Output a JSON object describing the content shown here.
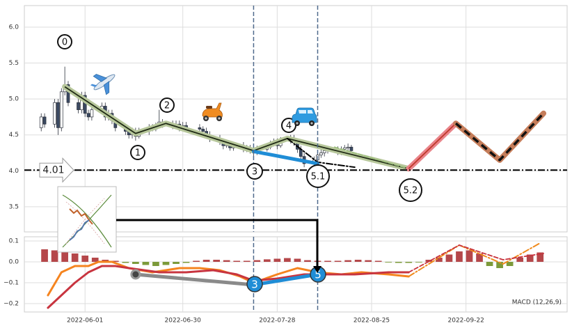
{
  "chart_data": [
    {
      "type": "candlestick",
      "xlim": [
        "2022-05-14",
        "2022-10-22"
      ],
      "ylim": [
        3.15,
        6.3
      ],
      "yticks": [
        3.5,
        {
          "value": 4,
          "label": "4.0"
        },
        4.5,
        {
          "value": 5,
          "label": "5.0"
        },
        5.5,
        {
          "value": 6,
          "label": "6.0"
        }
      ],
      "xticks": [
        "2022-06-01",
        "2022-06-30",
        "2022-07-28",
        "2022-08-25",
        "2022-09-22"
      ],
      "xticklabels": false,
      "grid": true,
      "up_color": "#ffffff",
      "down_color": "#3b4a63",
      "edge_color": "#2a2f3a",
      "x": [
        "2022-05-19",
        "2022-05-20",
        "2022-05-23",
        "2022-05-24",
        "2022-05-25",
        "2022-05-26",
        "2022-05-27",
        "2022-05-30",
        "2022-05-31",
        "2022-06-01",
        "2022-06-02",
        "2022-06-03",
        "2022-06-06",
        "2022-06-07",
        "2022-06-08",
        "2022-06-09",
        "2022-06-10",
        "2022-06-13",
        "2022-06-14",
        "2022-06-15",
        "2022-06-16",
        "2022-06-17",
        "2022-06-20",
        "2022-06-21",
        "2022-06-22",
        "2022-06-23",
        "2022-06-24",
        "2022-06-27",
        "2022-06-28",
        "2022-06-29",
        "2022-06-30",
        "2022-07-01",
        "2022-07-05",
        "2022-07-06",
        "2022-07-07",
        "2022-07-08",
        "2022-07-11",
        "2022-07-12",
        "2022-07-13",
        "2022-07-14",
        "2022-07-15",
        "2022-07-18",
        "2022-07-19",
        "2022-07-20",
        "2022-07-21",
        "2022-07-22",
        "2022-07-25",
        "2022-07-26",
        "2022-07-27",
        "2022-07-28",
        "2022-07-29",
        "2022-08-01",
        "2022-08-02",
        "2022-08-03",
        "2022-08-04",
        "2022-08-05",
        "2022-08-08",
        "2022-08-09",
        "2022-08-10",
        "2022-08-11",
        "2022-08-12",
        "2022-08-15",
        "2022-08-16",
        "2022-08-17",
        "2022-08-18",
        "2022-08-19"
      ],
      "open": [
        4.6,
        4.75,
        4.65,
        4.95,
        4.6,
        5.1,
        5.2,
        4.95,
        4.85,
        5.05,
        4.8,
        4.75,
        4.85,
        4.9,
        4.75,
        4.8,
        4.7,
        4.6,
        4.55,
        4.5,
        4.55,
        4.48,
        4.55,
        4.6,
        4.58,
        4.62,
        4.68,
        4.65,
        4.62,
        4.65,
        4.6,
        4.63,
        4.6,
        4.58,
        4.55,
        4.5,
        4.45,
        4.4,
        4.35,
        4.38,
        4.32,
        4.35,
        4.3,
        4.32,
        4.28,
        4.25,
        4.3,
        4.33,
        4.38,
        4.4,
        4.35,
        4.42,
        4.45,
        4.4,
        4.3,
        4.2,
        4.1,
        4.15,
        4.22,
        4.25,
        4.28,
        4.3,
        4.26,
        4.3,
        4.32,
        4.33
      ],
      "high": [
        4.8,
        4.8,
        5.0,
        5.0,
        5.15,
        5.45,
        5.25,
        5.0,
        5.1,
        5.1,
        4.85,
        4.9,
        4.95,
        4.95,
        4.85,
        4.85,
        4.75,
        4.65,
        4.6,
        4.6,
        4.6,
        4.6,
        4.65,
        4.65,
        4.67,
        4.85,
        4.72,
        4.7,
        4.7,
        4.7,
        4.68,
        4.68,
        4.65,
        4.62,
        4.6,
        4.55,
        4.5,
        4.45,
        4.42,
        4.42,
        4.4,
        4.4,
        4.36,
        4.36,
        4.32,
        4.35,
        4.38,
        4.42,
        4.45,
        4.45,
        4.47,
        4.5,
        4.5,
        4.45,
        4.35,
        4.25,
        4.2,
        4.26,
        4.3,
        4.32,
        4.34,
        4.34,
        4.34,
        4.36,
        4.38,
        4.36
      ],
      "low": [
        4.55,
        4.6,
        4.6,
        4.5,
        4.55,
        5.05,
        4.9,
        4.8,
        4.8,
        4.75,
        4.7,
        4.7,
        4.8,
        4.7,
        4.7,
        4.65,
        4.55,
        4.5,
        4.45,
        4.45,
        4.42,
        4.45,
        4.5,
        4.55,
        4.55,
        4.6,
        4.6,
        4.58,
        4.58,
        4.55,
        4.56,
        4.56,
        4.54,
        4.5,
        4.46,
        4.4,
        4.36,
        4.3,
        4.32,
        4.28,
        4.28,
        4.26,
        4.26,
        4.24,
        4.2,
        4.22,
        4.27,
        4.3,
        4.34,
        4.3,
        4.32,
        4.38,
        4.35,
        4.25,
        4.15,
        4.05,
        4.05,
        4.1,
        4.18,
        4.2,
        4.24,
        4.22,
        4.22,
        4.26,
        4.28,
        4.24
      ],
      "close": [
        4.75,
        4.65,
        4.95,
        4.6,
        5.1,
        5.2,
        4.95,
        4.85,
        5.05,
        4.8,
        4.75,
        4.85,
        4.9,
        4.75,
        4.8,
        4.7,
        4.6,
        4.55,
        4.5,
        4.55,
        4.48,
        4.55,
        4.6,
        4.58,
        4.62,
        4.68,
        4.65,
        4.62,
        4.65,
        4.6,
        4.63,
        4.6,
        4.58,
        4.55,
        4.5,
        4.45,
        4.4,
        4.35,
        4.38,
        4.32,
        4.35,
        4.3,
        4.32,
        4.28,
        4.25,
        4.3,
        4.33,
        4.38,
        4.4,
        4.35,
        4.42,
        4.45,
        4.4,
        4.3,
        4.2,
        4.1,
        4.15,
        4.22,
        4.25,
        4.28,
        4.3,
        4.26,
        4.3,
        4.32,
        4.33,
        4.28
      ],
      "lines": [
        {
          "x": [
            "2022-05-26",
            "2022-06-16",
            "2022-06-25",
            "2022-07-21",
            "2022-07-31",
            "2022-09-05"
          ],
          "values": [
            5.17,
            4.52,
            4.66,
            4.28,
            4.45,
            4.03
          ],
          "color": "#b7c79b",
          "inner": "#1f2a14",
          "style": "halo"
        },
        {
          "x": [
            "2022-08-14",
            "2022-09-05"
          ],
          "values": [
            4.33,
            4.03
          ],
          "color": "#9dbf7e",
          "style": "dashed"
        },
        {
          "x": [
            "2022-07-31",
            "2022-08-09",
            "2022-08-20"
          ],
          "values": [
            4.45,
            4.12,
            4.05
          ],
          "color": "#000000",
          "style": "dashdot"
        },
        {
          "x": [
            "2022-07-21",
            "2022-08-09"
          ],
          "values": [
            4.27,
            4.1
          ],
          "color": "#1f8dd6",
          "style": "heavy"
        },
        {
          "x": [
            "2022-09-05",
            "2022-09-19"
          ],
          "values": [
            4.03,
            4.66
          ],
          "color": "#e9848a",
          "inner": "#c0392b",
          "style": "halo"
        },
        {
          "x": [
            "2022-09-19",
            "2022-10-02",
            "2022-10-15"
          ],
          "values": [
            4.66,
            4.15,
            4.8
          ],
          "color": "#c57d5a",
          "inner": "#111111",
          "style": "halo-dashed"
        }
      ],
      "hline": 4.01,
      "hline_color": "#000000",
      "vlines": [
        "2022-07-21",
        "2022-08-09"
      ],
      "vline_color": "#4f6a8c",
      "annotations": [
        "0",
        "1",
        "2",
        "4",
        "3",
        "5.1",
        "5.2"
      ]
    },
    {
      "type": "bar",
      "xlim": [
        "2022-05-14",
        "2022-10-22"
      ],
      "ylim": [
        -0.24,
        0.12
      ],
      "yticks": [
        {
          "value": -0.2,
          "label": "−0.2"
        },
        {
          "value": -0.1,
          "label": "−0.1"
        },
        {
          "value": 0,
          "label": "0.0"
        },
        0.1
      ],
      "xticks": [
        "2022-06-01",
        "2022-06-30",
        "2022-07-28",
        "2022-08-25",
        "2022-09-22"
      ],
      "xticklabels": true,
      "grid": true,
      "label": "MACD (12,26,9)",
      "positive_color": "#b5474a",
      "negative_color": "#7c9a3a",
      "x": [
        "2022-05-20",
        "2022-05-23",
        "2022-05-26",
        "2022-05-29",
        "2022-06-01",
        "2022-06-04",
        "2022-06-07",
        "2022-06-10",
        "2022-06-13",
        "2022-06-16",
        "2022-06-19",
        "2022-06-22",
        "2022-06-25",
        "2022-06-28",
        "2022-07-01",
        "2022-07-04",
        "2022-07-07",
        "2022-07-10",
        "2022-07-13",
        "2022-07-16",
        "2022-07-19",
        "2022-07-22",
        "2022-07-25",
        "2022-07-28",
        "2022-07-31",
        "2022-08-03",
        "2022-08-06",
        "2022-08-09",
        "2022-08-12",
        "2022-08-15",
        "2022-08-18",
        "2022-08-21",
        "2022-08-24",
        "2022-08-27",
        "2022-08-30",
        "2022-09-02",
        "2022-09-05",
        "2022-09-08",
        "2022-09-11",
        "2022-09-14",
        "2022-09-17",
        "2022-09-20",
        "2022-09-23",
        "2022-09-26",
        "2022-09-29",
        "2022-10-02",
        "2022-10-05",
        "2022-10-08",
        "2022-10-11",
        "2022-10-14"
      ],
      "values": [
        0.06,
        0.055,
        0.05,
        0.04,
        0.03,
        0.02,
        0.01,
        0.005,
        -0.005,
        -0.01,
        -0.015,
        -0.02,
        -0.015,
        -0.01,
        -0.005,
        0.005,
        0.01,
        0.01,
        0.008,
        0.005,
        0.005,
        0.008,
        0.012,
        0.015,
        0.018,
        0.015,
        0.008,
        0.005,
        0.005,
        0.005,
        0.008,
        0.01,
        0.008,
        0.005,
        -0.003,
        -0.005,
        -0.005,
        -0.003,
        0.01,
        0.02,
        0.035,
        0.05,
        0.055,
        0.04,
        -0.02,
        -0.03,
        -0.02,
        0.02,
        0.035,
        0.045
      ],
      "lines": [
        {
          "x": [
            "2022-05-21",
            "2022-05-25",
            "2022-05-29",
            "2022-06-02",
            "2022-06-05",
            "2022-06-09",
            "2022-06-14",
            "2022-06-21",
            "2022-06-29",
            "2022-07-05",
            "2022-07-11",
            "2022-07-17",
            "2022-07-21",
            "2022-07-28",
            "2022-08-03",
            "2022-08-09",
            "2022-08-16",
            "2022-08-22",
            "2022-08-30",
            "2022-09-05"
          ],
          "values": [
            -0.16,
            -0.05,
            -0.02,
            -0.02,
            0,
            0,
            -0.03,
            -0.05,
            -0.03,
            -0.03,
            -0.04,
            -0.07,
            -0.1,
            -0.06,
            -0.03,
            -0.05,
            -0.06,
            -0.05,
            -0.06,
            -0.07
          ],
          "color": "#f5841f",
          "style": "solid"
        },
        {
          "x": [
            "2022-05-21",
            "2022-05-25",
            "2022-05-29",
            "2022-06-02",
            "2022-06-06",
            "2022-06-10",
            "2022-06-14",
            "2022-06-23",
            "2022-07-01",
            "2022-07-09",
            "2022-07-16",
            "2022-07-21",
            "2022-07-28",
            "2022-08-05",
            "2022-08-12",
            "2022-08-20",
            "2022-08-30",
            "2022-09-05"
          ],
          "values": [
            -0.22,
            -0.16,
            -0.1,
            -0.05,
            -0.02,
            -0.02,
            -0.03,
            -0.05,
            -0.05,
            -0.04,
            -0.06,
            -0.09,
            -0.08,
            -0.06,
            -0.06,
            -0.06,
            -0.05,
            -0.05
          ],
          "color": "#c8343f",
          "style": "solid"
        },
        {
          "x": [
            "2022-09-05",
            "2022-09-20",
            "2022-10-03",
            "2022-10-14"
          ],
          "values": [
            -0.07,
            0.08,
            -0.01,
            0.09
          ],
          "color": "#f08a1c",
          "style": "dashdot"
        },
        {
          "x": [
            "2022-09-05",
            "2022-09-20",
            "2022-10-03",
            "2022-10-15"
          ],
          "values": [
            -0.05,
            0.08,
            0.01,
            0.04
          ],
          "color": "#c8323c",
          "style": "dashed"
        },
        {
          "x": [
            "2022-06-16",
            "2022-07-21"
          ],
          "values": [
            -0.06,
            -0.11
          ],
          "color": "#8a8a8a",
          "style": "heavy",
          "marker": "start"
        },
        {
          "x": [
            "2022-07-21",
            "2022-08-09"
          ],
          "values": [
            -0.11,
            -0.06
          ],
          "color": "#1f8dd6",
          "style": "heavy"
        }
      ],
      "vlines": [
        "2022-07-21",
        "2022-08-09"
      ],
      "vline_color": "#4f6a8c",
      "annotations": [
        "3",
        "5"
      ]
    }
  ]
}
